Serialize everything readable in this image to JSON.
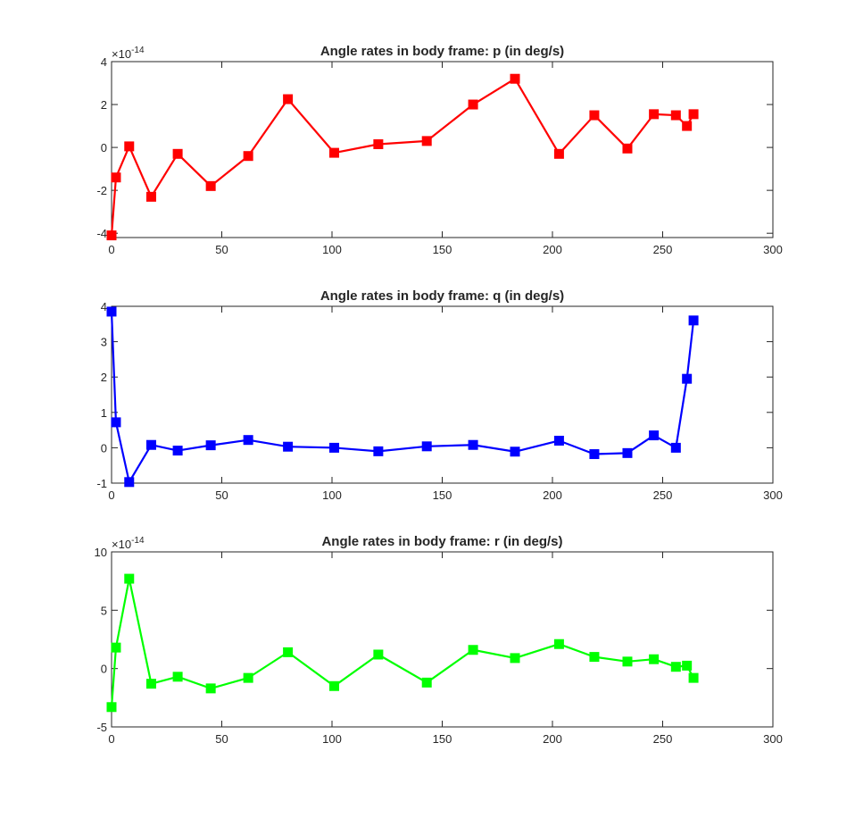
{
  "chart_data": [
    {
      "type": "line",
      "title": "Angle rates in body frame: p (in deg/s)",
      "xlabel": "",
      "ylabel": "",
      "xlim": [
        0,
        300
      ],
      "ylim": [
        -4.2,
        4
      ],
      "x_ticks": [
        0,
        50,
        100,
        150,
        200,
        250,
        300
      ],
      "y_ticks": [
        -4,
        -2,
        0,
        2,
        4
      ],
      "y_tick_labels": [
        "-4",
        "-2",
        "0",
        "2",
        "4"
      ],
      "y_exponent_label": "×10^{-14}",
      "grid": false,
      "color": "#ff0000",
      "marker": "square",
      "series": [
        {
          "x": [
            0,
            2,
            8,
            18,
            30,
            45,
            62,
            80,
            101,
            121,
            143,
            164,
            183,
            203,
            219,
            234,
            246,
            256,
            261,
            264
          ],
          "values": [
            -4.1,
            -1.4,
            0.05,
            -2.3,
            -0.3,
            -1.8,
            -0.4,
            2.25,
            -0.25,
            0.15,
            0.3,
            2.0,
            3.2,
            -0.3,
            1.5,
            -0.05,
            1.55,
            1.5,
            1.0,
            1.55
          ]
        }
      ]
    },
    {
      "type": "line",
      "title": "Angle rates in body frame: q (in deg/s)",
      "xlabel": "",
      "ylabel": "",
      "xlim": [
        0,
        300
      ],
      "ylim": [
        -1,
        4
      ],
      "x_ticks": [
        0,
        50,
        100,
        150,
        200,
        250,
        300
      ],
      "y_ticks": [
        -1,
        0,
        1,
        2,
        3,
        4
      ],
      "y_tick_labels": [
        "-1",
        "0",
        "1",
        "2",
        "3",
        "4"
      ],
      "y_exponent_label": "",
      "grid": false,
      "color": "#0000ff",
      "marker": "square",
      "series": [
        {
          "x": [
            0,
            2,
            8,
            18,
            30,
            45,
            62,
            80,
            101,
            121,
            143,
            164,
            183,
            203,
            219,
            234,
            246,
            256,
            261,
            264
          ],
          "values": [
            3.85,
            0.72,
            -0.97,
            0.08,
            -0.08,
            0.07,
            0.22,
            0.03,
            0.0,
            -0.1,
            0.04,
            0.08,
            -0.11,
            0.2,
            -0.18,
            -0.15,
            0.35,
            0.0,
            1.95,
            3.6
          ]
        }
      ]
    },
    {
      "type": "line",
      "title": "Angle rates in body frame: r (in deg/s)",
      "xlabel": "",
      "ylabel": "",
      "xlim": [
        0,
        300
      ],
      "ylim": [
        -5,
        10
      ],
      "x_ticks": [
        0,
        50,
        100,
        150,
        200,
        250,
        300
      ],
      "y_ticks": [
        -5,
        0,
        5,
        10
      ],
      "y_tick_labels": [
        "-5",
        "0",
        "5",
        "10"
      ],
      "y_exponent_label": "×10^{-14}",
      "grid": false,
      "color": "#00ff00",
      "marker": "square",
      "series": [
        {
          "x": [
            0,
            2,
            8,
            18,
            30,
            45,
            62,
            80,
            101,
            121,
            143,
            164,
            183,
            203,
            219,
            234,
            246,
            256,
            261,
            264
          ],
          "values": [
            -3.3,
            1.8,
            7.7,
            -1.3,
            -0.7,
            -1.7,
            -0.8,
            1.4,
            -1.5,
            1.2,
            -1.2,
            1.6,
            0.9,
            2.1,
            1.0,
            0.6,
            0.8,
            0.15,
            0.25,
            -0.8
          ]
        }
      ]
    }
  ]
}
